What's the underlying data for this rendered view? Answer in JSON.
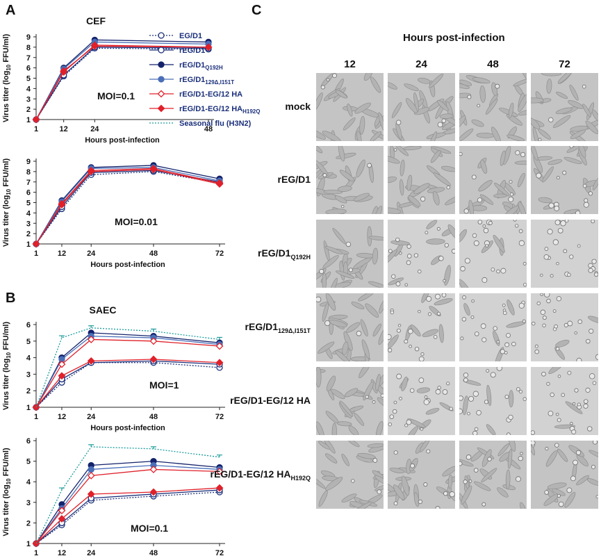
{
  "panels": {
    "A": {
      "letter": "A",
      "subtitle": "CEF"
    },
    "B": {
      "letter": "B",
      "subtitle": "SAEC"
    },
    "C": {
      "letter": "C",
      "title": "Hours post-infection"
    }
  },
  "legend": [
    {
      "label": "EG/D1",
      "sub": "",
      "color": "#1a2f7a",
      "marker": "open-circle",
      "dash": "2,2"
    },
    {
      "label": "rEG/D1",
      "sub": "",
      "color": "#1a2f7a",
      "marker": "open-circle",
      "dash": ""
    },
    {
      "label": "rEG/D1",
      "sub": "Q192H",
      "color": "#13226b",
      "marker": "filled-circle",
      "dash": ""
    },
    {
      "label": "rEG/D1",
      "sub": "129Δ,I151T",
      "color": "#4a6fb8",
      "marker": "filled-circle",
      "dash": ""
    },
    {
      "label": "rEG/D1-EG/12 HA",
      "sub": "",
      "color": "#e0202a",
      "marker": "open-diamond",
      "dash": ""
    },
    {
      "label": "rEG/D1-EG/12 HA",
      "sub": "H192Q",
      "color": "#e0202a",
      "marker": "filled-diamond",
      "dash": ""
    },
    {
      "label": "Seasonal flu (H3N2)",
      "sub": "",
      "color": "#1a9a9a",
      "marker": "none",
      "dash": "2,2"
    }
  ],
  "chart_data": [
    {
      "type": "line",
      "panel": "A-top",
      "annotation": "MOI=0.1",
      "xlabel": "Hours post-infection",
      "ylabel": "Virus titer (log10 FFU/ml)",
      "x": [
        "1",
        "12",
        "24",
        "48"
      ],
      "ylim": [
        1,
        9
      ],
      "yticks": [
        1,
        2,
        3,
        4,
        5,
        6,
        7,
        8,
        9
      ],
      "series": [
        {
          "name": "EG/D1",
          "values": [
            1,
            5.2,
            7.9,
            7.8
          ]
        },
        {
          "name": "rEG/D1",
          "values": [
            1,
            5.3,
            8.0,
            7.9
          ]
        },
        {
          "name": "rEG/D1 Q192H",
          "values": [
            1,
            6.0,
            8.7,
            8.5
          ]
        },
        {
          "name": "rEG/D1 129Δ,I151T",
          "values": [
            1,
            5.9,
            8.5,
            8.3
          ]
        },
        {
          "name": "rEG/D1-EG/12 HA",
          "values": [
            1,
            5.6,
            8.2,
            8.0
          ]
        },
        {
          "name": "rEG/D1-EG/12 HA H192Q",
          "values": [
            1,
            5.7,
            8.1,
            8.0
          ]
        }
      ]
    },
    {
      "type": "line",
      "panel": "A-bottom",
      "annotation": "MOI=0.01",
      "xlabel": "Hours post-infection",
      "ylabel": "Virus titer (log10 FFU/ml)",
      "x": [
        "1",
        "12",
        "24",
        "48",
        "72"
      ],
      "ylim": [
        1,
        9
      ],
      "yticks": [
        1,
        2,
        3,
        4,
        5,
        6,
        7,
        8,
        9
      ],
      "series": [
        {
          "name": "EG/D1",
          "values": [
            1,
            4.4,
            7.7,
            8.0,
            6.9
          ]
        },
        {
          "name": "rEG/D1",
          "values": [
            1,
            4.6,
            7.9,
            8.1,
            7.0
          ]
        },
        {
          "name": "rEG/D1 Q192H",
          "values": [
            1,
            5.2,
            8.4,
            8.6,
            7.3
          ]
        },
        {
          "name": "rEG/D1 129Δ,I151T",
          "values": [
            1,
            5.1,
            8.3,
            8.4,
            7.1
          ]
        },
        {
          "name": "rEG/D1-EG/12 HA",
          "values": [
            1,
            4.8,
            8.0,
            8.2,
            6.8
          ]
        },
        {
          "name": "rEG/D1-EG/12 HA H192Q",
          "values": [
            1,
            4.9,
            8.1,
            8.3,
            6.9
          ]
        }
      ]
    },
    {
      "type": "line",
      "panel": "B-top",
      "annotation": "MOI=1",
      "xlabel": "Hours post-infection",
      "ylabel": "Virus titer (log10 FFU/ml)",
      "x": [
        "1",
        "12",
        "24",
        "48",
        "72"
      ],
      "ylim": [
        1,
        6
      ],
      "yticks": [
        1,
        2,
        3,
        4,
        5,
        6
      ],
      "series": [
        {
          "name": "EG/D1",
          "values": [
            1,
            2.5,
            3.7,
            3.7,
            3.4
          ]
        },
        {
          "name": "rEG/D1",
          "values": [
            1,
            2.7,
            3.7,
            3.8,
            3.6
          ]
        },
        {
          "name": "rEG/D1 Q192H",
          "values": [
            1,
            4.0,
            5.5,
            5.3,
            4.9
          ]
        },
        {
          "name": "rEG/D1 129Δ,I151T",
          "values": [
            1,
            3.9,
            5.3,
            5.2,
            4.8
          ]
        },
        {
          "name": "rEG/D1-EG/12 HA",
          "values": [
            1,
            3.6,
            5.1,
            5.0,
            4.7
          ]
        },
        {
          "name": "rEG/D1-EG/12 HA H192Q",
          "values": [
            1,
            2.9,
            3.8,
            3.9,
            3.7
          ]
        },
        {
          "name": "Seasonal flu (H3N2)",
          "values": [
            1,
            5.2,
            5.8,
            5.6,
            5.1
          ]
        }
      ]
    },
    {
      "type": "line",
      "panel": "B-bottom",
      "annotation": "MOI=0.1",
      "xlabel": "Hours post-infection",
      "ylabel": "Virus titer (log10 FFU/ml)",
      "x": [
        "1",
        "12",
        "24",
        "48",
        "72"
      ],
      "ylim": [
        1,
        6
      ],
      "yticks": [
        1,
        2,
        3,
        4,
        5,
        6
      ],
      "series": [
        {
          "name": "EG/D1",
          "values": [
            1,
            1.9,
            3.1,
            3.3,
            3.5
          ]
        },
        {
          "name": "rEG/D1",
          "values": [
            1,
            2.0,
            3.2,
            3.4,
            3.6
          ]
        },
        {
          "name": "rEG/D1 Q192H",
          "values": [
            1,
            2.9,
            4.8,
            5.0,
            4.7
          ]
        },
        {
          "name": "rEG/D1 129Δ,I151T",
          "values": [
            1,
            2.7,
            4.6,
            4.8,
            4.6
          ]
        },
        {
          "name": "rEG/D1-EG/12 HA",
          "values": [
            1,
            2.6,
            4.3,
            4.6,
            4.5
          ]
        },
        {
          "name": "rEG/D1-EG/12 HA H192Q",
          "values": [
            1,
            2.2,
            3.4,
            3.5,
            3.7
          ]
        },
        {
          "name": "Seasonal flu (H3N2)",
          "values": [
            1,
            3.6,
            5.7,
            5.6,
            5.2
          ]
        }
      ]
    }
  ],
  "micrographs": {
    "columns": [
      "12",
      "24",
      "48",
      "72"
    ],
    "rows": [
      {
        "label": "mock",
        "sub": ""
      },
      {
        "label": "rEG/D1",
        "sub": ""
      },
      {
        "label": "rEG/D1",
        "sub": "Q192H"
      },
      {
        "label": "rEG/D1",
        "sub": "129Δ,I151T"
      },
      {
        "label": "rEG/D1-EG/12 HA",
        "sub": ""
      },
      {
        "label": "rEG/D1-EG/12 HA",
        "sub": "H192Q"
      }
    ]
  }
}
